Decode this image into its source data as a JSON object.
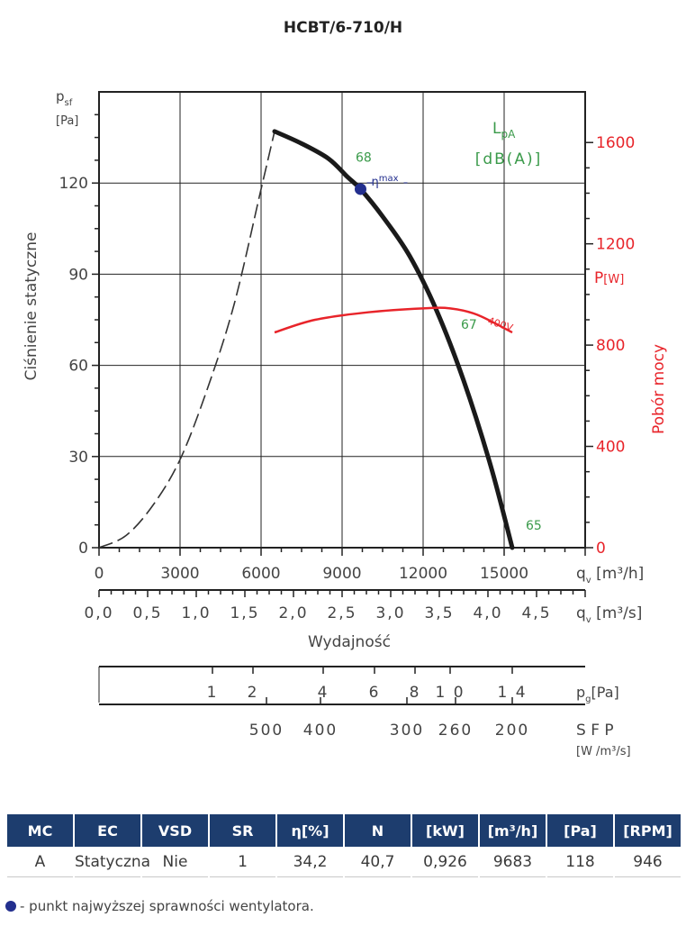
{
  "chart_data": {
    "type": "line",
    "title": "HCBT/6-710/H",
    "x_axis": {
      "unit": "q",
      "unit_sub": "v",
      "unit_tail": " [m³/h]",
      "range": [
        0,
        18000
      ],
      "ticks": [
        0,
        3000,
        6000,
        9000,
        12000,
        15000
      ],
      "tick_labels": [
        "0",
        "3000",
        "6000",
        "9000",
        "12000",
        "15000"
      ]
    },
    "x2_axis": {
      "unit": "q",
      "unit_sub": "v",
      "unit_tail": " [m³/s]",
      "range": [
        0,
        5
      ],
      "ticks": [
        0,
        0.5,
        1.0,
        1.5,
        2.0,
        2.5,
        3.0,
        3.5,
        4.0,
        4.5
      ],
      "tick_labels": [
        "0,0",
        "0,5",
        "1,0",
        "1,5",
        "2,0",
        "2,5",
        "3,0",
        "3,5",
        "4,0",
        "4,5"
      ],
      "label": "Wydajność"
    },
    "y_axis": {
      "label": "Ciśnienie statyczne",
      "unit": "p",
      "unit_sub": "sf",
      "unit_bracket": "[Pa]",
      "range": [
        0,
        150
      ],
      "ticks": [
        0,
        30,
        60,
        90,
        120
      ],
      "tick_labels": [
        "0",
        "30",
        "60",
        "90",
        "120"
      ]
    },
    "y2_axis": {
      "label": "Pobór mocy",
      "unit": "P",
      "unit_bracket": "[W]",
      "range": [
        0,
        1800
      ],
      "ticks": [
        0,
        400,
        800,
        1200,
        1600
      ],
      "tick_labels": [
        "0",
        "400",
        "800",
        "1200",
        "1600"
      ],
      "color": "#e8242a"
    },
    "series": [
      {
        "role": "pressure-extrapolated",
        "style": "dashed",
        "color": "#333333",
        "x": [
          0,
          1000,
          2000,
          3000,
          4000,
          5000,
          6000,
          6500
        ],
        "y": [
          0,
          4,
          14,
          29,
          52,
          80,
          118,
          137
        ]
      },
      {
        "role": "pressure",
        "color": "#1a1a1a",
        "x": [
          6500,
          7500,
          8500,
          9200,
          9683,
          10500,
          11500,
          12500,
          13500,
          14500,
          15300
        ],
        "y": [
          137,
          133,
          128,
          122,
          118,
          109,
          96,
          78,
          55,
          27,
          0
        ]
      },
      {
        "role": "power",
        "name": "400V",
        "color": "#e8242a",
        "axis": "y2",
        "x": [
          6500,
          8000,
          10000,
          12000,
          13000,
          14000,
          15300
        ],
        "y": [
          850,
          900,
          930,
          945,
          945,
          920,
          850
        ]
      }
    ],
    "lpa_labels": [
      {
        "text": "68",
        "x": 9500,
        "y": 127
      },
      {
        "text": "67",
        "x": 13400,
        "y": 72
      },
      {
        "text": "65",
        "x": 15800,
        "y": 6
      }
    ],
    "lpa_legend": {
      "line1": "L",
      "line1_sub": "pA",
      "line2": "[dB(A)]",
      "color": "#3a9a4a"
    },
    "eta_max": {
      "x": 9683,
      "y": 118,
      "label": "η",
      "label_sup": "max",
      "color": "#232f8e"
    },
    "pg_scale": {
      "unit": "p",
      "unit_sub": "g",
      "unit_tail": "[Pa]",
      "ticks": [
        {
          "label": "1",
          "q": 4200
        },
        {
          "label": "2",
          "q": 5700
        },
        {
          "label": "4",
          "q": 8300
        },
        {
          "label": "6",
          "q": 10200
        },
        {
          "label": "8",
          "q": 11700
        },
        {
          "label": "1 0",
          "q": 13000
        },
        {
          "label": "1 4",
          "q": 15300
        }
      ]
    },
    "sfp_scale": {
      "label": "S F P",
      "unit": "[W /m³/s]",
      "ticks": [
        {
          "label": "500",
          "q": 6200
        },
        {
          "label": "400",
          "q": 8200
        },
        {
          "label": "300",
          "q": 11400
        },
        {
          "label": "260",
          "q": 13200
        },
        {
          "label": "200",
          "q": 15300
        }
      ]
    },
    "grid": true
  },
  "table": {
    "headers": [
      "MC",
      "EC",
      "VSD",
      "SR",
      "η[%]",
      "N",
      "[kW]",
      "[m³/h]",
      "[Pa]",
      "[RPM]"
    ],
    "row": [
      "A",
      "Statyczna",
      "Nie",
      "1",
      "34,2",
      "40,7",
      "0,926",
      "9683",
      "118",
      "946"
    ]
  },
  "legend_note": "- punkt najwyższej sprawności wentylatora."
}
